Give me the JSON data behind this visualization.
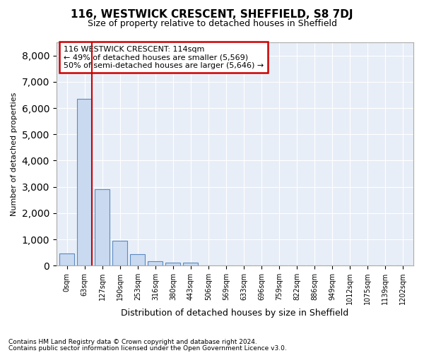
{
  "title1": "116, WESTWICK CRESCENT, SHEFFIELD, S8 7DJ",
  "title2": "Size of property relative to detached houses in Sheffield",
  "xlabel": "Distribution of detached houses by size in Sheffield",
  "ylabel": "Number of detached properties",
  "footnote1": "Contains HM Land Registry data © Crown copyright and database right 2024.",
  "footnote2": "Contains public sector information licensed under the Open Government Licence v3.0.",
  "annotation_line1": "116 WESTWICK CRESCENT: 114sqm",
  "annotation_line2": "← 49% of detached houses are smaller (5,569)",
  "annotation_line3": "50% of semi-detached houses are larger (5,646) →",
  "bar_color": "#c9d9f0",
  "bar_edge_color": "#5a8abf",
  "highlight_line_color": "#cc0000",
  "annotation_box_edge_color": "#cc0000",
  "background_color": "#e8eef7",
  "bins": [
    "0sqm",
    "63sqm",
    "127sqm",
    "190sqm",
    "253sqm",
    "316sqm",
    "380sqm",
    "443sqm",
    "506sqm",
    "569sqm",
    "633sqm",
    "696sqm",
    "759sqm",
    "822sqm",
    "886sqm",
    "949sqm",
    "1012sqm",
    "1075sqm",
    "1139sqm",
    "1202sqm"
  ],
  "values": [
    450,
    6350,
    2900,
    950,
    430,
    170,
    120,
    110,
    0,
    0,
    0,
    0,
    0,
    0,
    0,
    0,
    0,
    0,
    0,
    0
  ],
  "highlight_bin_index": 1,
  "ylim": [
    0,
    8500
  ],
  "yticks": [
    0,
    1000,
    2000,
    3000,
    4000,
    5000,
    6000,
    7000,
    8000
  ]
}
